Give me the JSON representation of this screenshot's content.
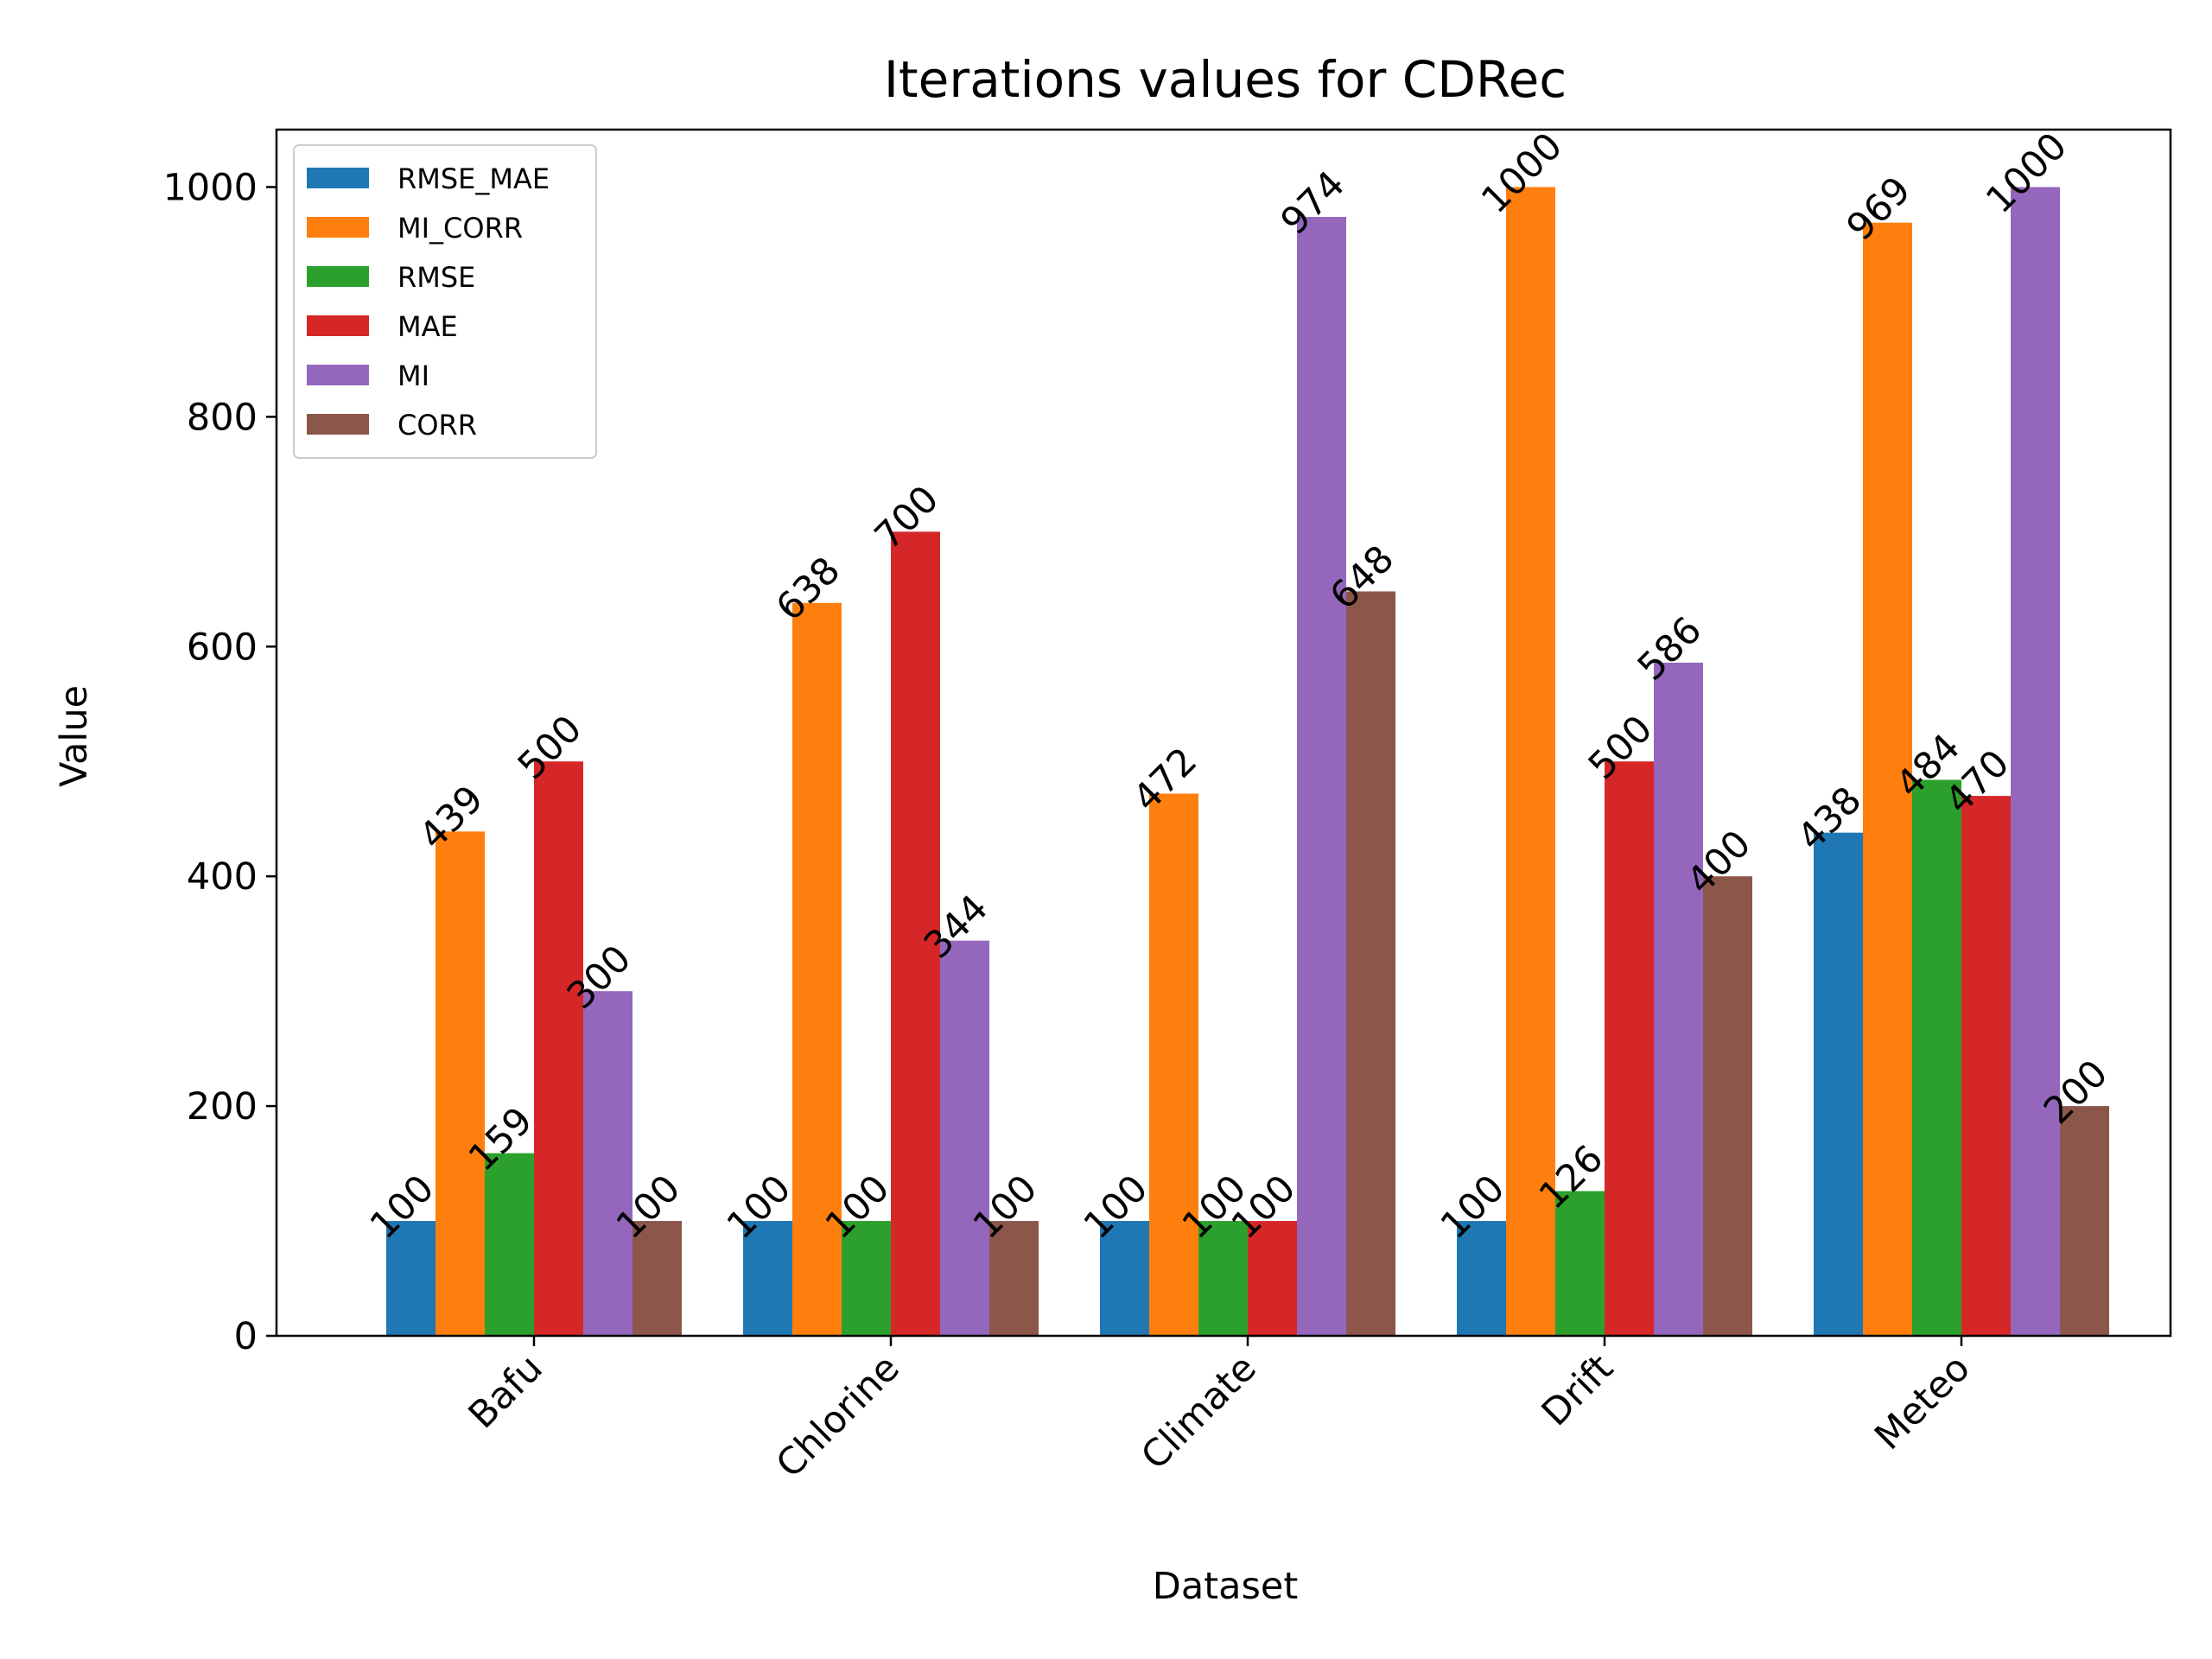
{
  "chart_data": {
    "type": "bar",
    "title": "Iterations values for CDRec",
    "xlabel": "Dataset",
    "ylabel": "Value",
    "ylim": [
      0,
      1050
    ],
    "yticks": [
      0,
      200,
      400,
      600,
      800,
      1000
    ],
    "categories": [
      "Bafu",
      "Chlorine",
      "Climate",
      "Drift",
      "Meteo"
    ],
    "series": [
      {
        "name": "RMSE_MAE",
        "color": "#1f77b4",
        "values": [
          100,
          100,
          100,
          100,
          438
        ]
      },
      {
        "name": "MI_CORR",
        "color": "#ff7f0e",
        "values": [
          439,
          638,
          472,
          1000,
          969
        ]
      },
      {
        "name": "RMSE",
        "color": "#2ca02c",
        "values": [
          159,
          100,
          100,
          126,
          484
        ]
      },
      {
        "name": "MAE",
        "color": "#d62728",
        "values": [
          500,
          700,
          100,
          500,
          470
        ]
      },
      {
        "name": "MI",
        "color": "#9467bd",
        "values": [
          300,
          344,
          974,
          586,
          1000
        ]
      },
      {
        "name": "CORR",
        "color": "#8c564b",
        "values": [
          100,
          100,
          648,
          400,
          200
        ]
      }
    ],
    "legend_position": "top-left",
    "grid": false
  }
}
